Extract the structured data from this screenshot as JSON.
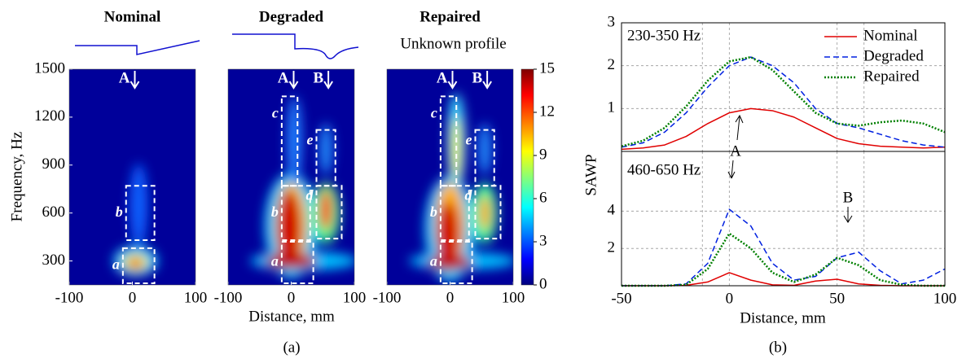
{
  "chart_data": [
    {
      "type": "heatmap",
      "title": "Nominal",
      "y_label": "Frequency, Hz",
      "xlim": [
        -100,
        100
      ],
      "xticks": [
        -100,
        0,
        100
      ],
      "ylim": [
        150,
        1500
      ],
      "yticks": [
        300,
        600,
        900,
        1200,
        1500
      ],
      "markers": [
        "A"
      ],
      "regions": [
        "a",
        "b"
      ]
    },
    {
      "type": "heatmap",
      "title": "Degraded",
      "x_label": "Distance, mm",
      "xlim": [
        -100,
        100
      ],
      "xticks": [
        -100,
        0,
        100
      ],
      "ylim": [
        150,
        1500
      ],
      "markers": [
        "A",
        "B"
      ],
      "regions": [
        "a",
        "b",
        "c",
        "d",
        "e"
      ]
    },
    {
      "type": "heatmap",
      "title": "Repaired",
      "subtitle": "Unknown profile",
      "xlim": [
        -100,
        100
      ],
      "xticks": [
        -100,
        0,
        100
      ],
      "ylim": [
        150,
        1500
      ],
      "markers": [
        "A",
        "B"
      ],
      "regions": [
        "a",
        "b",
        "c",
        "d",
        "e"
      ]
    },
    {
      "type": "colorbar",
      "ylim": [
        0,
        15
      ],
      "yticks": [
        0,
        3,
        6,
        9,
        12,
        15
      ]
    },
    {
      "type": "line",
      "annotation": "230-350 Hz",
      "y_label": "SAWP",
      "grid": true,
      "legend": "upper right",
      "x": [
        -50,
        -40,
        -30,
        -20,
        -10,
        0,
        10,
        20,
        30,
        40,
        50,
        60,
        70,
        80,
        90,
        100
      ],
      "xlim": [
        -50,
        100
      ],
      "ylim": [
        0,
        3
      ],
      "yticks": [
        1,
        2,
        3
      ],
      "series": [
        {
          "name": "Nominal",
          "color": "#e00000",
          "style": "solid",
          "values": [
            0.05,
            0.08,
            0.15,
            0.35,
            0.65,
            0.9,
            1.0,
            0.95,
            0.8,
            0.55,
            0.3,
            0.18,
            0.12,
            0.1,
            0.08,
            0.1
          ]
        },
        {
          "name": "Degraded",
          "color": "#0020e0",
          "style": "dashed",
          "values": [
            0.1,
            0.2,
            0.45,
            0.9,
            1.5,
            2.0,
            2.2,
            2.0,
            1.6,
            1.0,
            0.65,
            0.55,
            0.4,
            0.25,
            0.15,
            0.1
          ]
        },
        {
          "name": "Repaired",
          "color": "#008000",
          "style": "dotted",
          "values": [
            0.12,
            0.25,
            0.55,
            1.05,
            1.65,
            2.1,
            2.2,
            1.9,
            1.4,
            0.9,
            0.65,
            0.6,
            0.68,
            0.72,
            0.65,
            0.45
          ]
        }
      ]
    },
    {
      "type": "line",
      "annotation": "460-650 Hz",
      "x_label": "Distance, mm",
      "grid": true,
      "markers": [
        "A",
        "B"
      ],
      "x": [
        -50,
        -40,
        -30,
        -20,
        -10,
        0,
        10,
        20,
        30,
        40,
        50,
        60,
        70,
        80,
        90,
        100
      ],
      "xlim": [
        -50,
        100
      ],
      "xticks": [
        -50,
        0,
        50,
        100
      ],
      "ylim": [
        0,
        7.2
      ],
      "yticks": [
        2,
        4
      ],
      "series": [
        {
          "name": "Nominal",
          "color": "#e00000",
          "style": "solid",
          "values": [
            0,
            0,
            0,
            0.02,
            0.2,
            0.7,
            0.3,
            0.05,
            0.02,
            0.25,
            0.35,
            0.1,
            0.02,
            0,
            0,
            0
          ]
        },
        {
          "name": "Degraded",
          "color": "#0020e0",
          "style": "dashed",
          "values": [
            0,
            0,
            0,
            0.1,
            1.2,
            4.1,
            3.2,
            1.2,
            0.3,
            0.5,
            1.5,
            1.8,
            0.8,
            0.1,
            0.3,
            0.9
          ]
        },
        {
          "name": "Repaired",
          "color": "#008000",
          "style": "dotted",
          "values": [
            0,
            0,
            0,
            0.05,
            0.9,
            2.8,
            2.0,
            0.7,
            0.2,
            0.6,
            1.5,
            1.1,
            0.3,
            0.05,
            0,
            0
          ]
        }
      ]
    }
  ],
  "panel_labels": [
    "(a)",
    "(b)"
  ]
}
